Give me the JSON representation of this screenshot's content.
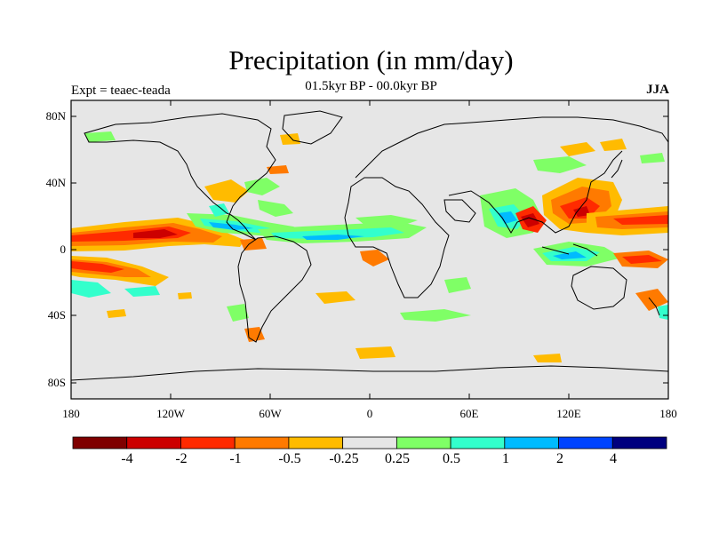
{
  "title": "Precipitation (in mm/day)",
  "subtitle": "01.5kyr BP - 00.0kyr BP",
  "left_label": "Expt = teaec-teada",
  "right_label": "JJA",
  "lat_ticks": [
    "80N",
    "40N",
    "0",
    "40S",
    "80S"
  ],
  "lon_ticks": [
    "180",
    "120W",
    "60W",
    "0",
    "60E",
    "120E",
    "180"
  ],
  "colorbar": {
    "labels": [
      "-4",
      "-2",
      "-1",
      "-0.5",
      "-0.25",
      "0.25",
      "0.5",
      "1",
      "2",
      "4"
    ],
    "colors": [
      "#7f0000",
      "#cc0000",
      "#ff2a00",
      "#ff7a00",
      "#ffbb00",
      "#e6e6e6",
      "#7fff66",
      "#33ffcc",
      "#00bbff",
      "#0044ff",
      "#00007f"
    ]
  },
  "map_colors": {
    "land_background": "#e6e6e6",
    "coast": "#000000"
  }
}
